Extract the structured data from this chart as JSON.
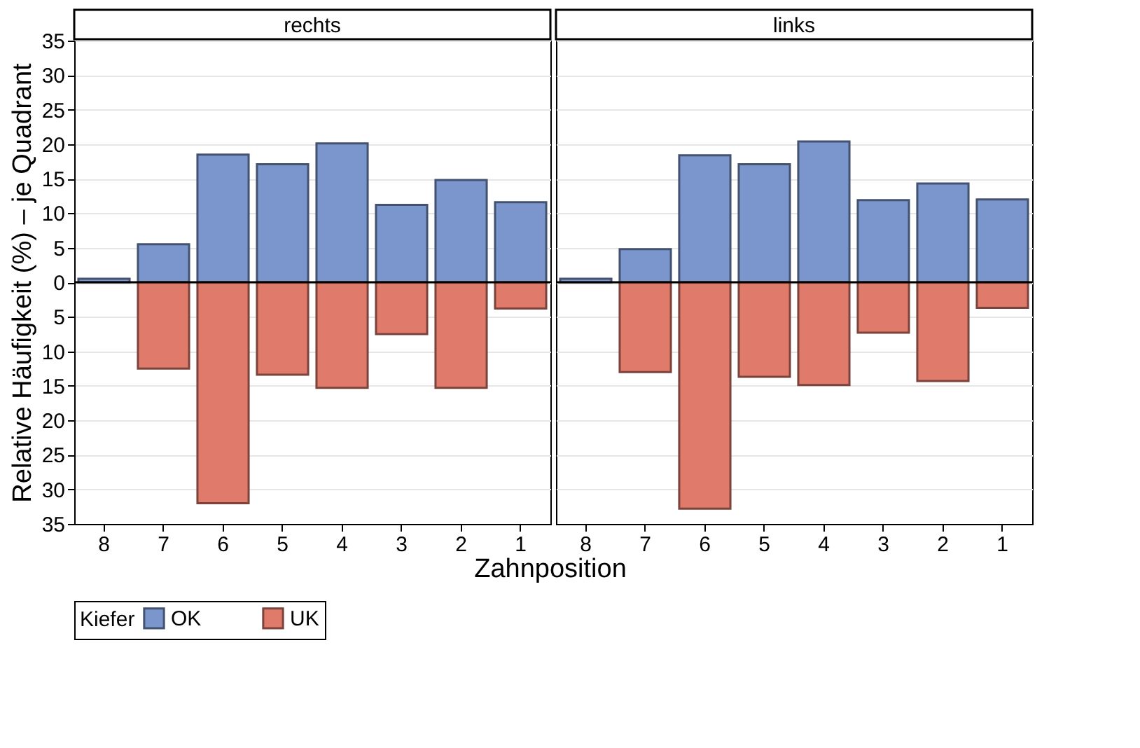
{
  "chart_data": [
    {
      "type": "bar",
      "title": "rechts",
      "categories": [
        "8",
        "7",
        "6",
        "5",
        "4",
        "3",
        "2",
        "1"
      ],
      "series": [
        {
          "name": "OK",
          "color": "#7b96cc",
          "values": [
            0.5,
            5.5,
            18.5,
            17.1,
            20.1,
            11.2,
            14.8,
            11.6
          ]
        },
        {
          "name": "UK",
          "color": "#e07b6c",
          "values": [
            null,
            -12.5,
            -32.0,
            -13.4,
            -15.3,
            -7.5,
            -15.3,
            -3.8
          ]
        }
      ],
      "stacked": true,
      "xlabel": "Zahnposition",
      "ylabel": "Relative Häufigkeit (%) – je Quadrant",
      "legend_title": "Kiefer",
      "legend": "bottom",
      "grid": "y",
      "ylim": [
        -35,
        35
      ],
      "yticks": [
        {
          "value": -35,
          "label": "35"
        },
        {
          "value": -30,
          "label": "30"
        },
        {
          "value": -25,
          "label": "25"
        },
        {
          "value": -20,
          "label": "20"
        },
        {
          "value": -15,
          "label": "15"
        },
        {
          "value": -10,
          "label": "10"
        },
        {
          "value": -5,
          "label": "5"
        },
        0,
        5,
        10,
        15,
        20,
        25,
        30,
        35
      ],
      "ref_lines": [
        {
          "axis": "y",
          "value": 0,
          "color": "#000000"
        }
      ]
    },
    {
      "type": "bar",
      "title": "links",
      "categories": [
        "8",
        "7",
        "6",
        "5",
        "4",
        "3",
        "2",
        "1"
      ],
      "series": [
        {
          "name": "OK",
          "color": "#7b96cc",
          "values": [
            0.5,
            4.8,
            18.4,
            17.1,
            20.4,
            11.9,
            14.3,
            12.0
          ]
        },
        {
          "name": "UK",
          "color": "#e07b6c",
          "values": [
            null,
            -13.0,
            -32.8,
            -13.7,
            -14.9,
            -7.3,
            -14.3,
            -3.7
          ]
        }
      ],
      "stacked": true,
      "grid": "y",
      "tick_labels": "x",
      "ylim": [
        -35,
        35
      ],
      "yticks": [
        {
          "value": -35,
          "label": "35"
        },
        {
          "value": -30,
          "label": "30"
        },
        {
          "value": -25,
          "label": "25"
        },
        {
          "value": -20,
          "label": "20"
        },
        {
          "value": -15,
          "label": "15"
        },
        {
          "value": -10,
          "label": "10"
        },
        {
          "value": -5,
          "label": "5"
        },
        0,
        5,
        10,
        15,
        20,
        25,
        30,
        35
      ],
      "ref_lines": [
        {
          "axis": "y",
          "value": 0,
          "color": "#000000"
        }
      ]
    }
  ]
}
